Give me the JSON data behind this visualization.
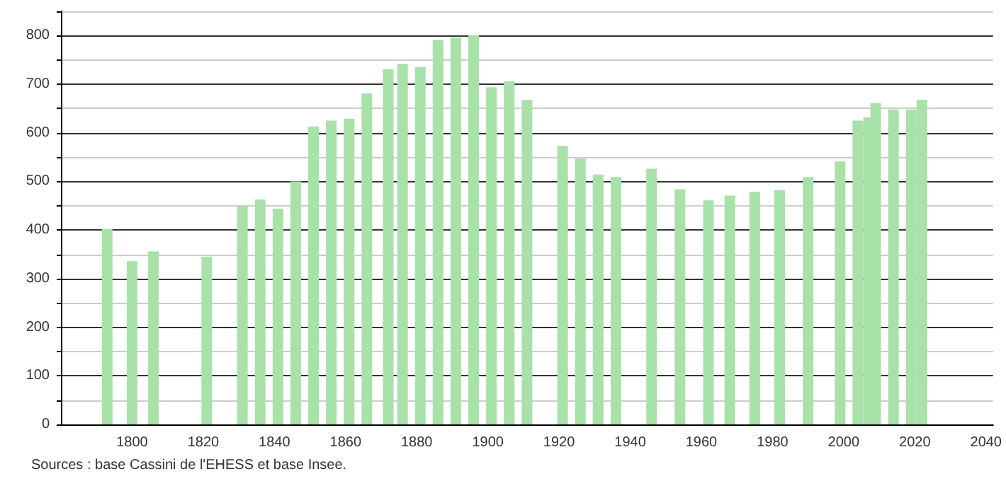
{
  "chart_data": {
    "type": "bar",
    "x": [
      1793,
      1800,
      1806,
      1821,
      1831,
      1836,
      1841,
      1846,
      1851,
      1856,
      1861,
      1866,
      1872,
      1876,
      1881,
      1886,
      1891,
      1896,
      1901,
      1906,
      1911,
      1921,
      1926,
      1931,
      1936,
      1946,
      1954,
      1962,
      1968,
      1975,
      1982,
      1990,
      1999,
      2004,
      2007,
      2009,
      2014,
      2019,
      2022
    ],
    "values": [
      402,
      336,
      356,
      345,
      449,
      463,
      444,
      500,
      613,
      625,
      629,
      681,
      731,
      742,
      735,
      791,
      796,
      801,
      694,
      706,
      668,
      573,
      547,
      514,
      509,
      526,
      484,
      461,
      471,
      479,
      482,
      509,
      541,
      625,
      632,
      661,
      648,
      648,
      668
    ],
    "color": "#a8e2a8",
    "xlim": [
      1780,
      2042
    ],
    "xticks": [
      1800,
      1820,
      1840,
      1860,
      1880,
      1900,
      1920,
      1940,
      1960,
      1980,
      2000,
      2020,
      2040
    ],
    "ylim": [
      0,
      850
    ],
    "yticks": [
      0,
      {
        "value": 50,
        "label": null
      },
      100,
      {
        "value": 150,
        "label": null
      },
      200,
      {
        "value": 250,
        "label": null
      },
      300,
      {
        "value": 350,
        "label": null
      },
      400,
      {
        "value": 450,
        "label": null
      },
      500,
      {
        "value": 550,
        "label": null
      },
      600,
      {
        "value": 650,
        "label": null
      },
      700,
      {
        "value": 750,
        "label": null
      },
      800,
      {
        "value": 850,
        "label": null
      }
    ],
    "grid": "y",
    "annotations": [
      "Sources : base Cassini de l'EHESS et base Insee."
    ]
  }
}
